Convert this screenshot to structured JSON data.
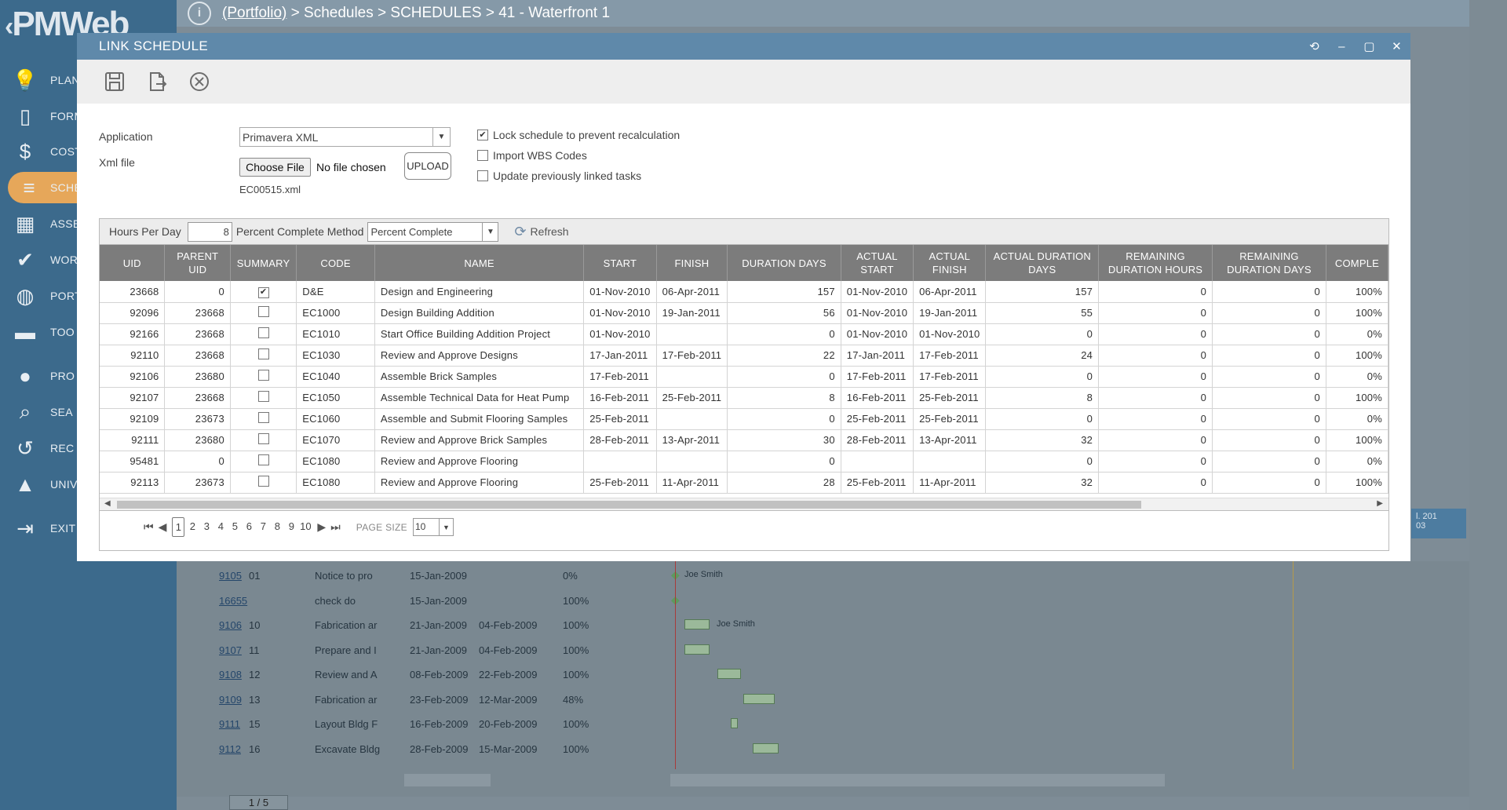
{
  "app": {
    "logo_text": "PMWeb",
    "logo_chevron": "‹"
  },
  "topbar": {
    "info_glyph": "i",
    "breadcrumb_link": "(Portfolio)",
    "breadcrumb_rest": "> Schedules > SCHEDULES > 41 - Waterfront 1"
  },
  "sidebar": {
    "items": [
      {
        "icon": "lightbulb-icon",
        "glyph": "💡",
        "label": "PLAN"
      },
      {
        "icon": "document-icon",
        "glyph": "▯",
        "label": "FORM"
      },
      {
        "icon": "dollar-icon",
        "glyph": "$",
        "label": "COST"
      },
      {
        "icon": "schedule-icon",
        "glyph": "≡",
        "label": "SCHE"
      },
      {
        "icon": "building-icon",
        "glyph": "▦",
        "label": "ASSE"
      },
      {
        "icon": "check-icon",
        "glyph": "✔",
        "label": "WOR"
      },
      {
        "icon": "globe-icon",
        "glyph": "◍",
        "label": "PORT"
      },
      {
        "icon": "briefcase-icon",
        "glyph": "▬",
        "label": "TOO"
      },
      {
        "icon": "person-icon",
        "glyph": "●",
        "label": "PRO"
      },
      {
        "icon": "search-icon",
        "glyph": "⌕",
        "label": "SEA"
      },
      {
        "icon": "history-icon",
        "glyph": "↺",
        "label": "REC"
      },
      {
        "icon": "graduation-cap-icon",
        "glyph": "▲",
        "label": "UNIVERSITY"
      },
      {
        "icon": "exit-icon",
        "glyph": "⇥",
        "label": "EXIT"
      }
    ]
  },
  "modal": {
    "title": "LINK SCHEDULE",
    "window_buttons": [
      "⟲",
      "–",
      "▢",
      "✕"
    ],
    "form": {
      "application_label": "Application",
      "application_value": "Primavera XML",
      "xml_label": "Xml file",
      "choose_file": "Choose File",
      "no_file": "No file chosen",
      "upload": "UPLOAD",
      "xml_filename": "EC00515.xml",
      "lock_label": "Lock schedule to prevent recalculation",
      "lock_checked": "✔",
      "wbs_label": "Import WBS Codes",
      "update_label": "Update previously linked tasks"
    },
    "grid_toolbar": {
      "hours_label": "Hours Per Day",
      "hours_value": "8",
      "pcm_label": "Percent Complete Method",
      "pcm_value": "Percent Complete",
      "refresh": "Refresh"
    },
    "columns": [
      "UID",
      "PARENT UID",
      "SUMMARY",
      "CODE",
      "NAME",
      "START",
      "FINISH",
      "DURATION DAYS",
      "ACTUAL START",
      "ACTUAL FINISH",
      "ACTUAL DURATION DAYS",
      "REMAINING DURATION HOURS",
      "REMAINING DURATION DAYS",
      "COMPLE"
    ],
    "rows": [
      [
        "23668",
        "0",
        "✔",
        "D&E",
        "Design and Engineering",
        "01-Nov-2010",
        "06-Apr-2011",
        "157",
        "01-Nov-2010",
        "06-Apr-2011",
        "157",
        "0",
        "0",
        "100%"
      ],
      [
        "92096",
        "23668",
        "",
        "EC1000",
        "Design Building Addition",
        "01-Nov-2010",
        "19-Jan-2011",
        "56",
        "01-Nov-2010",
        "19-Jan-2011",
        "55",
        "0",
        "0",
        "100%"
      ],
      [
        "92166",
        "23668",
        "",
        "EC1010",
        "Start Office Building Addition Project",
        "01-Nov-2010",
        "",
        "0",
        "01-Nov-2010",
        "01-Nov-2010",
        "0",
        "0",
        "0",
        "0%"
      ],
      [
        "92110",
        "23668",
        "",
        "EC1030",
        "Review and Approve Designs",
        "17-Jan-2011",
        "17-Feb-2011",
        "22",
        "17-Jan-2011",
        "17-Feb-2011",
        "24",
        "0",
        "0",
        "100%"
      ],
      [
        "92106",
        "23680",
        "",
        "EC1040",
        "Assemble Brick Samples",
        "17-Feb-2011",
        "",
        "0",
        "17-Feb-2011",
        "17-Feb-2011",
        "0",
        "0",
        "0",
        "0%"
      ],
      [
        "92107",
        "23668",
        "",
        "EC1050",
        "Assemble Technical Data for Heat Pump",
        "16-Feb-2011",
        "25-Feb-2011",
        "8",
        "16-Feb-2011",
        "25-Feb-2011",
        "8",
        "0",
        "0",
        "100%"
      ],
      [
        "92109",
        "23673",
        "",
        "EC1060",
        "Assemble and Submit Flooring Samples",
        "25-Feb-2011",
        "",
        "0",
        "25-Feb-2011",
        "25-Feb-2011",
        "0",
        "0",
        "0",
        "0%"
      ],
      [
        "92111",
        "23680",
        "",
        "EC1070",
        "Review and Approve Brick Samples",
        "28-Feb-2011",
        "13-Apr-2011",
        "30",
        "28-Feb-2011",
        "13-Apr-2011",
        "32",
        "0",
        "0",
        "100%"
      ],
      [
        "95481",
        "0",
        "",
        "EC1080",
        "Review and Approve Flooring",
        "",
        "",
        "0",
        "",
        "",
        "0",
        "0",
        "0",
        "0%"
      ],
      [
        "92113",
        "23673",
        "",
        "EC1080",
        "Review and Approve Flooring",
        "25-Feb-2011",
        "11-Apr-2011",
        "28",
        "25-Feb-2011",
        "11-Apr-2011",
        "32",
        "0",
        "0",
        "100%"
      ]
    ],
    "pager": {
      "pages": [
        "1",
        "2",
        "3",
        "4",
        "5",
        "6",
        "7",
        "8",
        "9",
        "10"
      ],
      "current": "1",
      "page_size_label": "PAGE SIZE",
      "page_size": "10"
    }
  },
  "background_grid": {
    "rows": [
      {
        "id": "9105",
        "num": "01",
        "name": "Notice to pro",
        "start": "15-Jan-2009",
        "finish": "",
        "pct": "0%",
        "label": "Joe Smith"
      },
      {
        "id": "16655",
        "num": "",
        "name": "check do",
        "start": "15-Jan-2009",
        "finish": "",
        "pct": "100%",
        "label": ""
      },
      {
        "id": "9106",
        "num": "10",
        "name": "Fabrication ar",
        "start": "21-Jan-2009",
        "finish": "04-Feb-2009",
        "pct": "100%",
        "label": "Joe Smith"
      },
      {
        "id": "9107",
        "num": "11",
        "name": "Prepare and I",
        "start": "21-Jan-2009",
        "finish": "04-Feb-2009",
        "pct": "100%",
        "label": ""
      },
      {
        "id": "9108",
        "num": "12",
        "name": "Review and A",
        "start": "08-Feb-2009",
        "finish": "22-Feb-2009",
        "pct": "100%",
        "label": ""
      },
      {
        "id": "9109",
        "num": "13",
        "name": "Fabrication ar",
        "start": "23-Feb-2009",
        "finish": "12-Mar-2009",
        "pct": "48%",
        "label": ""
      },
      {
        "id": "9111",
        "num": "15",
        "name": "Layout Bldg F",
        "start": "16-Feb-2009",
        "finish": "20-Feb-2009",
        "pct": "100%",
        "label": ""
      },
      {
        "id": "9112",
        "num": "16",
        "name": "Excavate Bldg",
        "start": "28-Feb-2009",
        "finish": "15-Mar-2009",
        "pct": "100%",
        "label": ""
      }
    ],
    "pager_text": "1 / 5",
    "tile_text": "l. 201",
    "tile_sub": "03"
  }
}
